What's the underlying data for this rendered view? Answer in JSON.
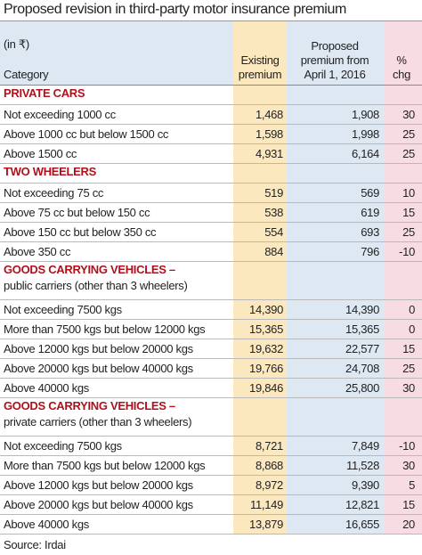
{
  "title": "Proposed revision in third-party motor insurance premium",
  "unit": "(in ₹)",
  "headers": [
    "Category",
    "Existing premium",
    "Proposed premium from April 1, 2016",
    "% chg"
  ],
  "sections": [
    {
      "title": "PRIVATE CARS",
      "rows": [
        [
          "Not exceeding 1000 cc",
          "1,468",
          "1,908",
          "30"
        ],
        [
          "Above 1000 cc but below 1500 cc",
          "1,598",
          "1,998",
          "25"
        ],
        [
          "Above 1500 cc",
          "4,931",
          "6,164",
          "25"
        ]
      ]
    },
    {
      "title": "TWO WHEELERS",
      "rows": [
        [
          "Not exceeding 75 cc",
          "519",
          "569",
          "10"
        ],
        [
          "Above 75 cc but below 150 cc",
          "538",
          "619",
          "15"
        ],
        [
          "Above 150 cc but below 350 cc",
          "554",
          "693",
          "25"
        ],
        [
          "Above 350 cc",
          "884",
          "796",
          "-10"
        ]
      ]
    },
    {
      "title": "GOODS CARRYING VEHICLES –",
      "subtitle": "public carriers (other than 3 wheelers)",
      "rows": [
        [
          "Not exceeding 7500 kgs",
          "14,390",
          "14,390",
          "0"
        ],
        [
          "More than 7500 kgs but below 12000 kgs",
          "15,365",
          "15,365",
          "0"
        ],
        [
          "Above 12000 kgs but below 20000 kgs",
          "19,632",
          "22,577",
          "15"
        ],
        [
          "Above 20000 kgs but below 40000 kgs",
          "19,766",
          "24,708",
          "25"
        ],
        [
          "Above 40000 kgs",
          "19,846",
          "25,800",
          "30"
        ]
      ]
    },
    {
      "title": "GOODS CARRYING VEHICLES –",
      "subtitle": "private carriers (other than 3 wheelers)",
      "rows": [
        [
          "Not exceeding 7500 kgs",
          "8,721",
          "7,849",
          "-10"
        ],
        [
          "More than 7500 kgs but below 12000 kgs",
          "8,868",
          "11,528",
          "30"
        ],
        [
          "Above 12000 kgs but below 20000 kgs",
          "8,972",
          "9,390",
          "5"
        ],
        [
          "Above 20000 kgs but below 40000 kgs",
          "11,149",
          "12,821",
          "15"
        ],
        [
          "Above 40000 kgs",
          "13,879",
          "16,655",
          "20"
        ]
      ]
    }
  ],
  "source": "Source: Irdai"
}
